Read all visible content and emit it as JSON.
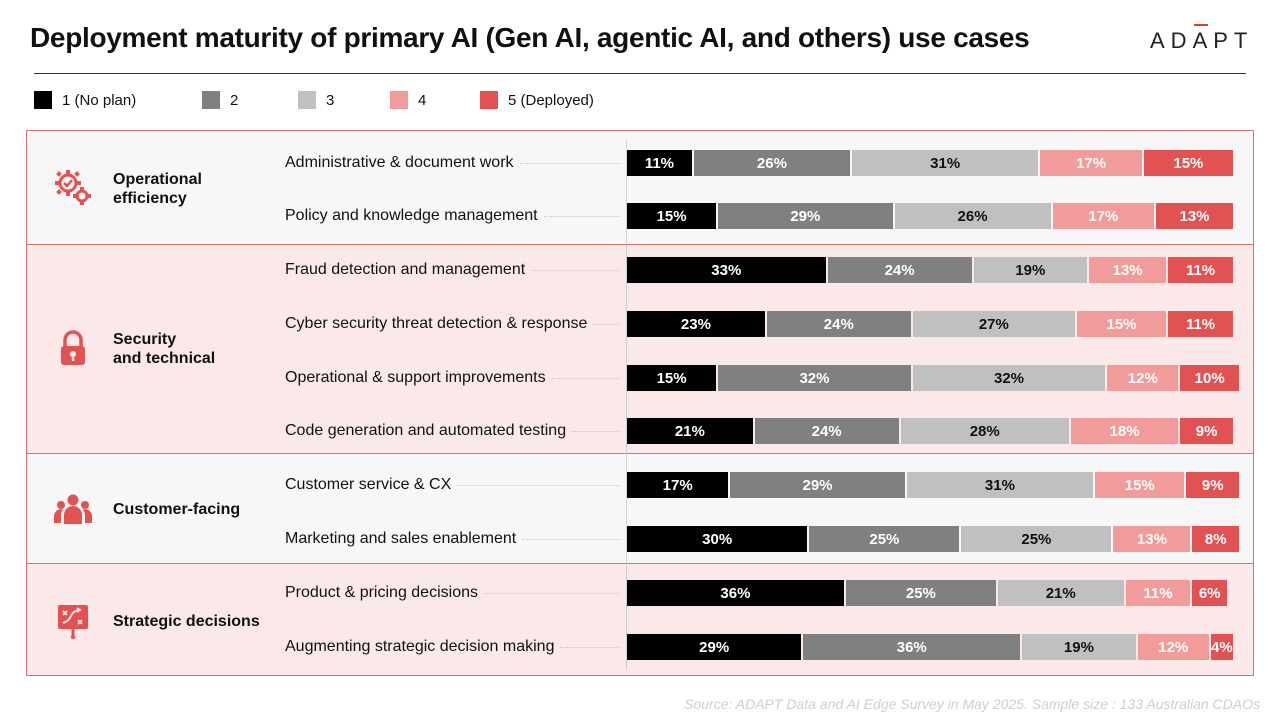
{
  "title": "Deployment maturity of primary AI (Gen AI, agentic AI, and others) use cases",
  "brand": {
    "pre": "AD",
    "accent": "A",
    "post": "PT"
  },
  "source": "Source: ADAPT Data and AI Edge Survey in May 2025. Sample size : 133 Australian CDAOs",
  "colors": {
    "s1": "#000000",
    "s2": "#808080",
    "s3": "#c0c0c0",
    "s4": "#f19b9b",
    "s5": "#e35252",
    "frame": "#e26b6b",
    "icon": "#e35252"
  },
  "sections": [
    {
      "label": "Operational\nefficiency",
      "icon": "gears-icon"
    },
    {
      "label": "Security\nand technical",
      "icon": "lock-icon"
    },
    {
      "label": "Customer-facing",
      "icon": "people-icon"
    },
    {
      "label": "Strategic decisions",
      "icon": "strategy-board-icon"
    }
  ],
  "chart_data": {
    "type": "bar",
    "orientation": "horizontal",
    "stacked": "100%",
    "title": "Deployment maturity of primary AI (Gen AI, agentic AI, and others) use cases",
    "value_unit": "%",
    "legend_position": "top-left",
    "series": [
      {
        "name": "1 (No plan)",
        "values": [
          11,
          15,
          33,
          23,
          15,
          21,
          17,
          30,
          36,
          29
        ]
      },
      {
        "name": "2",
        "values": [
          26,
          29,
          24,
          24,
          32,
          24,
          29,
          25,
          25,
          36
        ]
      },
      {
        "name": "3",
        "values": [
          31,
          26,
          19,
          27,
          32,
          28,
          31,
          25,
          21,
          19
        ]
      },
      {
        "name": "4",
        "values": [
          17,
          17,
          13,
          15,
          12,
          18,
          15,
          13,
          11,
          12
        ]
      },
      {
        "name": "5 (Deployed)",
        "values": [
          15,
          13,
          11,
          11,
          10,
          9,
          9,
          8,
          6,
          4
        ]
      }
    ],
    "categories": [
      "Administrative & document work",
      "Policy and knowledge management",
      "Fraud detection and management",
      "Cyber security threat detection & response",
      "Operational & support improvements",
      "Code generation and automated testing",
      "Customer service & CX",
      "Marketing and sales enablement",
      "Product & pricing decisions",
      "Augmenting strategic decision making"
    ],
    "category_groups": [
      {
        "group": "Operational\nefficiency",
        "count": 2
      },
      {
        "group": "Security\nand technical",
        "count": 4
      },
      {
        "group": "Customer-facing",
        "count": 2
      },
      {
        "group": "Strategic decisions",
        "count": 2
      }
    ]
  }
}
